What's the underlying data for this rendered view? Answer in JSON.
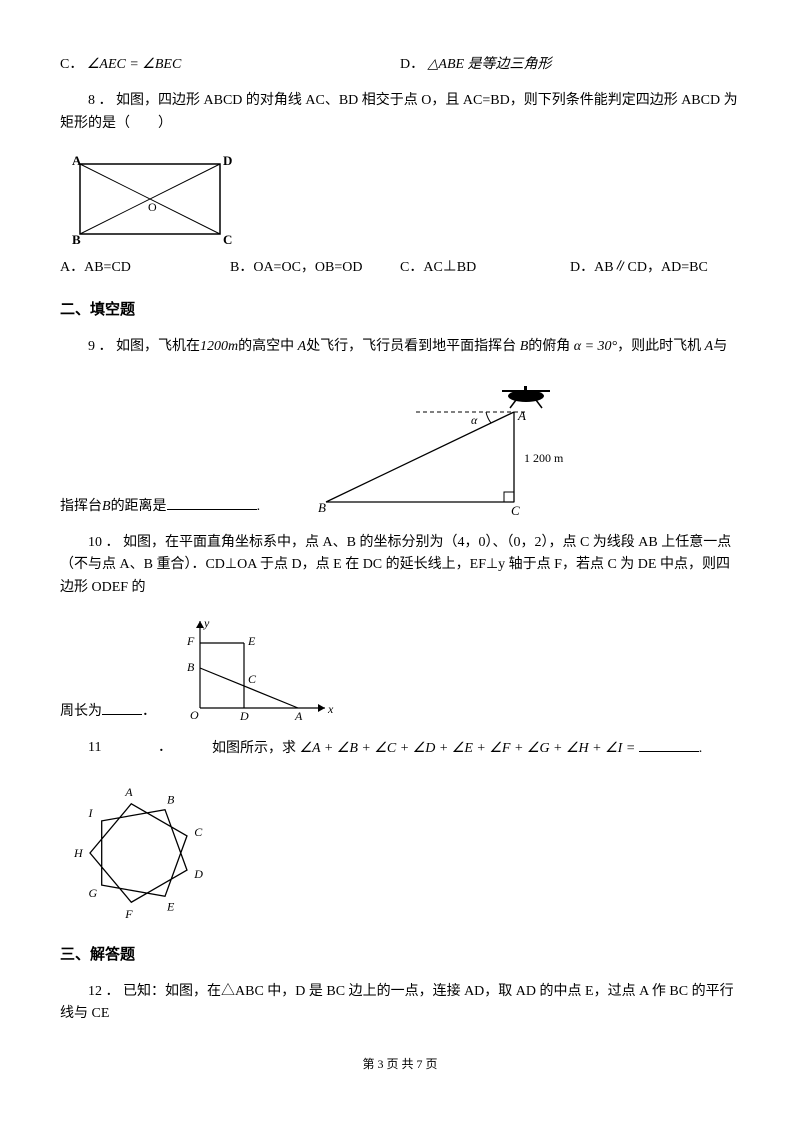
{
  "q7": {
    "optC_label": "C．",
    "optC_text": "∠AEC = ∠BEC",
    "optD_label": "D．",
    "optD_text": "△ABE 是等边三角形"
  },
  "q8": {
    "num": "8 ．",
    "text": "如图，四边形 ABCD 的对角线 AC、BD 相交于点 O，且 AC=BD，则下列条件能判定四边形 ABCD 为矩形的是（　　）",
    "optA": "A．AB=CD",
    "optB": "B．OA=OC，OB=OD",
    "optC": "C．AC⊥BD",
    "optD": "D．AB∥CD，AD=BC",
    "fig": {
      "A": "A",
      "B": "B",
      "C": "C",
      "D": "D",
      "O": "O",
      "stroke": "#000",
      "bg": "#fff"
    }
  },
  "section2": "二、填空题",
  "q9": {
    "num": "9 ．",
    "t1": "如图，飞机在",
    "alt": "1200m",
    "t2": "的高空中",
    "pA": "A",
    "t3": "处飞行，飞行员看到地平面指挥台",
    "pB": "B",
    "t4": "的俯角",
    "ang": "α = 30°",
    "t5": "，则此时飞机",
    "pA2": "A",
    "t6": "与",
    "t7": "指挥台",
    "pB2": "B",
    "t8": "的距离是",
    "punct": ".",
    "fig": {
      "A": "A",
      "B": "B",
      "C": "C",
      "alpha": "α",
      "dist": "1 200 m",
      "stroke": "#000"
    }
  },
  "q10": {
    "num": "10 ．",
    "text": "如图，在平面直角坐标系中，点 A、B 的坐标分别为（4，0）、（0，2），点 C 为线段 AB 上任意一点（不与点 A、B 重合）．CD⊥OA 于点 D，点 E 在 DC 的延长线上，EF⊥y 轴于点 F，若点 C 为 DE 中点，则四边形 ODEF 的",
    "t7": "周长为",
    "punct": "．",
    "fig": {
      "O": "O",
      "A": "A",
      "B": "B",
      "C": "C",
      "D": "D",
      "E": "E",
      "F": "F",
      "x": "x",
      "y": "y",
      "stroke": "#000"
    }
  },
  "q11": {
    "num": "11",
    "sep": "．",
    "t1": "如图所示，求",
    "expr": "∠A + ∠B + ∠C + ∠D + ∠E + ∠F + ∠G + ∠H + ∠I =",
    "punct": ".",
    "fig": {
      "labels": [
        "A",
        "B",
        "C",
        "D",
        "E",
        "F",
        "G",
        "H",
        "I"
      ],
      "stroke": "#000"
    }
  },
  "section3": "三、解答题",
  "q12": {
    "num": "12 ．",
    "text": "已知：如图，在△ABC 中，D 是 BC 边上的一点，连接 AD，取 AD 的中点 E，过点 A 作 BC 的平行线与 CE"
  },
  "footer": "第 3 页 共 7 页"
}
